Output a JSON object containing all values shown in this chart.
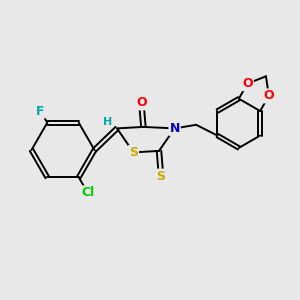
{
  "background_color": "#e8e8e8",
  "bond_color": "#000000",
  "atom_colors": {
    "O": "#ff0000",
    "N": "#0000cc",
    "S": "#ccaa00",
    "F": "#00aaaa",
    "Cl": "#00cc00",
    "H": "#00aaaa",
    "C": "#000000"
  },
  "bond_lw": 1.4,
  "font_size": 9
}
